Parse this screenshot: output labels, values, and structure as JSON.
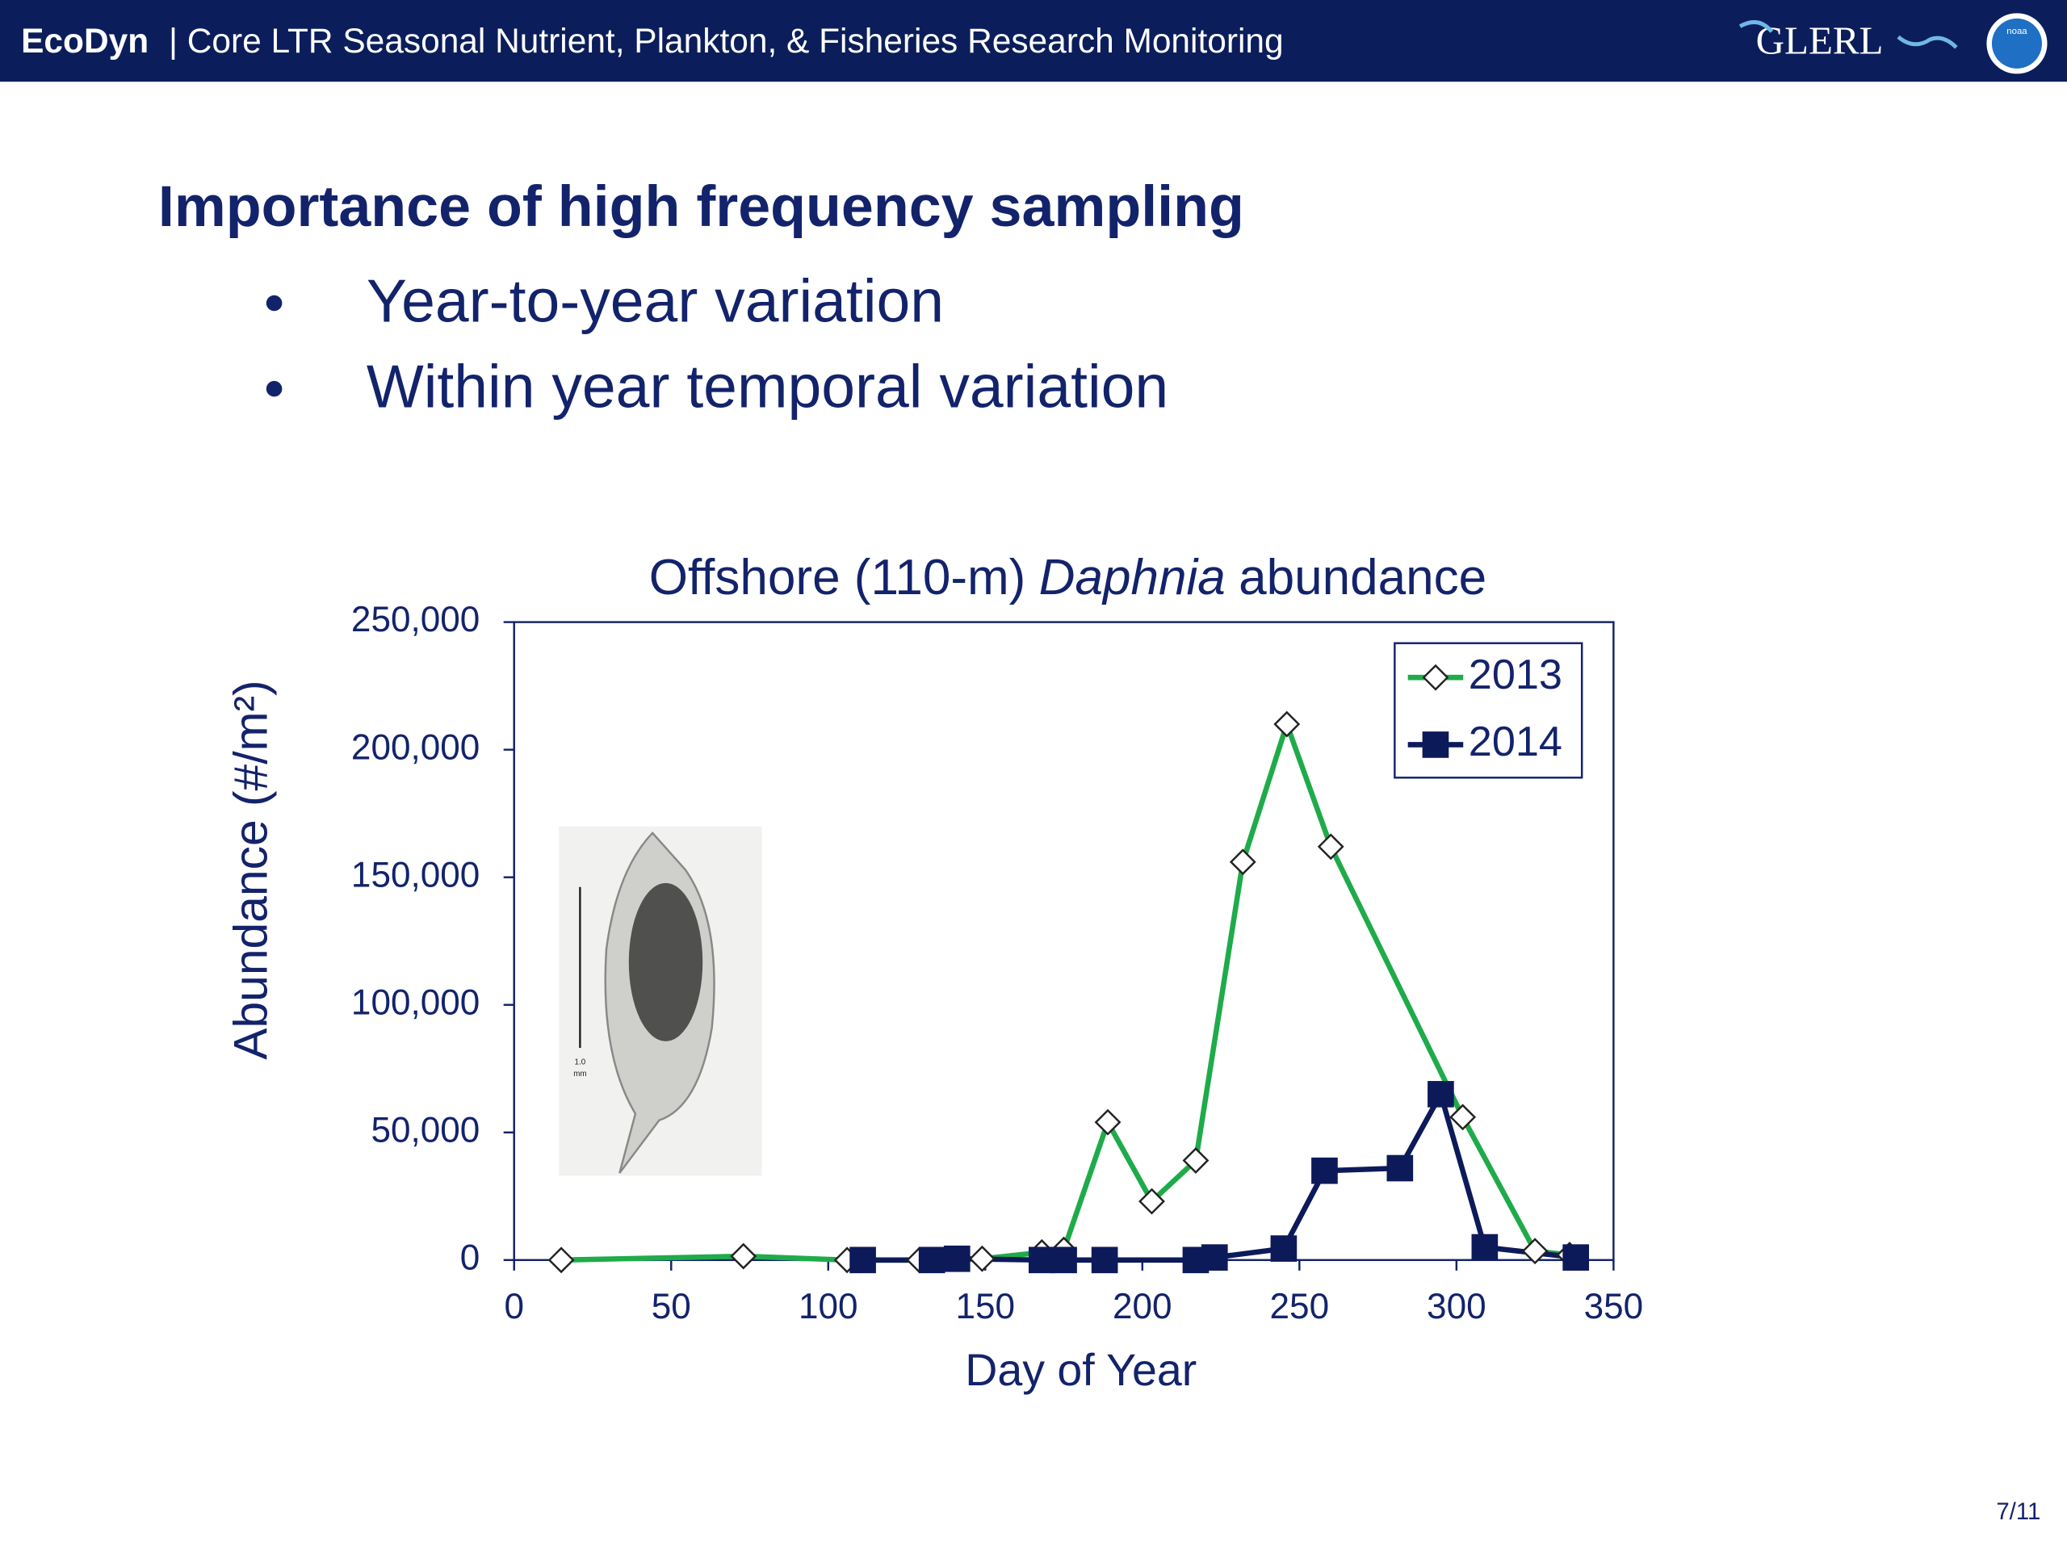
{
  "header": {
    "brand": "EcoDyn",
    "title": "| Core LTR Seasonal Nutrient, Plankton, & Fisheries Research Monitoring",
    "logo": "GLERL",
    "badge": "noaa"
  },
  "slide": {
    "title": "Importance of high frequency sampling",
    "bullets": [
      "Year-to-year variation",
      "Within year temporal variation"
    ],
    "page": "7/11"
  },
  "inset": {
    "scale_value": "1.0",
    "scale_unit": "mm"
  },
  "chart_data": {
    "type": "line",
    "title_parts": [
      "Offshore (110-m)",
      "Daphnia",
      "abundance"
    ],
    "x_label": "Day of Year",
    "y_label": "Abundance (#/m²)",
    "xlim": [
      0,
      350
    ],
    "xticks": [
      0,
      50,
      100,
      150,
      200,
      250,
      300,
      350
    ],
    "ylim": [
      0,
      250000
    ],
    "yticks": [
      0,
      {
        "value": 50000,
        "label": "50,000"
      },
      {
        "value": 100000,
        "label": "100,000"
      },
      {
        "value": 150000,
        "label": "150,000"
      },
      {
        "value": 200000,
        "label": "200,000"
      },
      {
        "value": 250000,
        "label": "250,000"
      }
    ],
    "legend": "upper right",
    "series": [
      {
        "name": "2013",
        "color": "#1fab4a",
        "marker": "open-diamond",
        "x": [
          15,
          73,
          106,
          129,
          149,
          168,
          175,
          189,
          203,
          217,
          232,
          246,
          260,
          302,
          325,
          336
        ],
        "values": [
          0,
          1500,
          0,
          0,
          500,
          3000,
          4000,
          54000,
          23000,
          39000,
          156000,
          210000,
          162000,
          56000,
          3500,
          2000
        ]
      },
      {
        "name": "2014",
        "color": "#0d1a5a",
        "marker": "filled-square",
        "x": [
          111,
          133,
          141,
          168,
          175,
          188,
          217,
          223,
          245,
          258,
          282,
          295,
          309,
          338
        ],
        "values": [
          0,
          0,
          500,
          0,
          0,
          0,
          0,
          1000,
          4500,
          35000,
          36000,
          65000,
          5000,
          1000
        ]
      }
    ]
  }
}
